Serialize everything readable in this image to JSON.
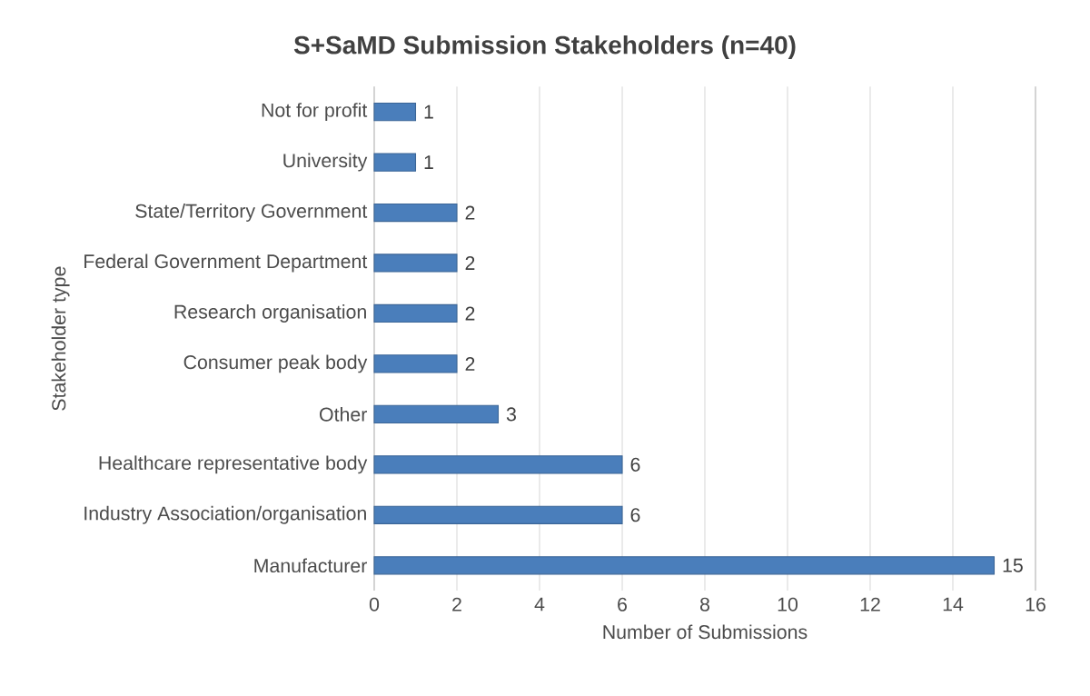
{
  "chart_data": {
    "type": "bar",
    "orientation": "horizontal",
    "title": "S+SaMD Submission Stakeholders (n=40)",
    "xlabel": "Number of Submissions",
    "ylabel": "Stakeholder type",
    "categories": [
      "Not for profit",
      "University",
      "State/Territory Government",
      "Federal Government Department",
      "Research organisation",
      "Consumer peak body",
      "Other",
      "Healthcare representative body",
      "Industry Association/organisation",
      "Manufacturer"
    ],
    "values": [
      1,
      1,
      2,
      2,
      2,
      2,
      3,
      6,
      6,
      15
    ],
    "color": "#4a7ebb",
    "xlim": [
      0,
      16
    ],
    "xticks": [
      0,
      2,
      4,
      6,
      8,
      10,
      12,
      14,
      16
    ],
    "grid": "x",
    "data_labels": true
  }
}
